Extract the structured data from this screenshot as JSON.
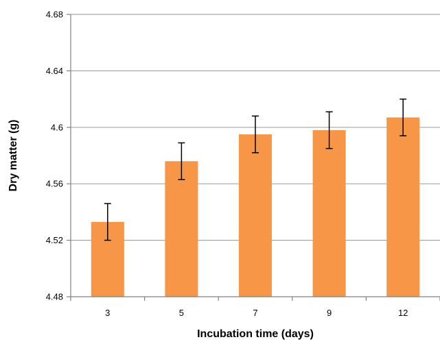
{
  "chart_data": {
    "type": "bar",
    "title": "",
    "xlabel": "Incubation time (days)",
    "ylabel": "Dry matter (g)",
    "categories": [
      "3",
      "5",
      "7",
      "9",
      "12"
    ],
    "values": [
      4.533,
      4.576,
      4.595,
      4.598,
      4.607
    ],
    "error": [
      0.013,
      0.013,
      0.013,
      0.013,
      0.013
    ],
    "ylim": [
      4.48,
      4.68
    ],
    "yticks": [
      "4.48",
      "4.52",
      "4.56",
      "4.6",
      "4.64",
      "4.68"
    ],
    "grid": true,
    "legend": "none",
    "colors": {
      "bar": "#F79646",
      "error_bar": "#000000",
      "grid": "#A6A6A6",
      "axis": "#808080"
    }
  }
}
